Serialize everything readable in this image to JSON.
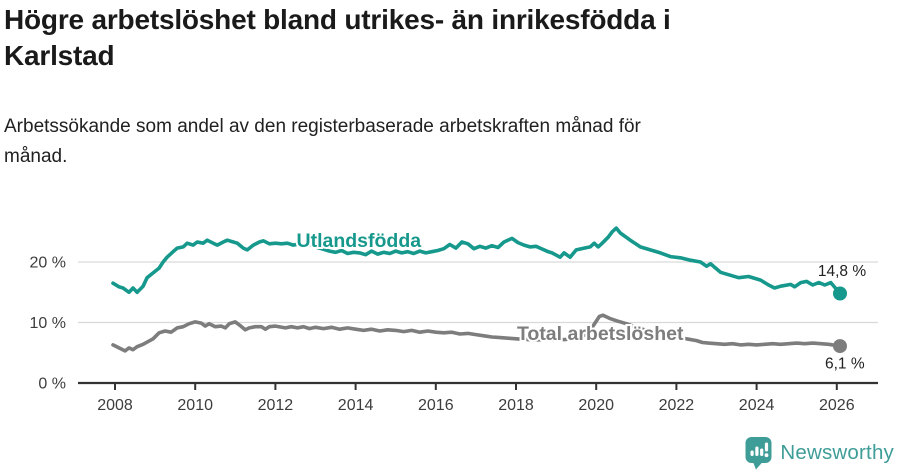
{
  "title_lines": [
    "Högre arbetslöshet bland utrikes- än inrikesfödda i",
    "Karlstad"
  ],
  "subtitle_lines": [
    "Arbetssökande som andel av den registerbaserade arbetskraften månad för",
    "månad."
  ],
  "branding": {
    "wordmark": "Newsworthy",
    "icon": "bar-chart-speech-bubble-icon",
    "color": "#3f9d97"
  },
  "colors": {
    "foreign_born_line": "#16998c",
    "total_line": "#7d7d7d",
    "axis": "#333333",
    "grid": "#d9d9d9",
    "tick_text": "#3d3d3d",
    "annotation_text": "#222222",
    "background": "#ffffff"
  },
  "chart_data": {
    "type": "line",
    "title": "Högre arbetslöshet bland utrikes- än inrikesfödda i Karlstad",
    "subtitle": "Arbetssökande som andel av den registerbaserade arbetskraften månad för månad.",
    "xlabel": "",
    "ylabel": "",
    "xlim": [
      2007.1,
      2026.9
    ],
    "ylim": [
      0,
      27
    ],
    "grid": "horizontal",
    "legend_position": "inline-labels",
    "x_ticks": [
      2008,
      2010,
      2012,
      2014,
      2016,
      2018,
      2020,
      2022,
      2024,
      2026
    ],
    "y_ticks": [
      {
        "value": 0,
        "label": "0 %"
      },
      {
        "value": 10,
        "label": "10 %"
      },
      {
        "value": 20,
        "label": "20 %"
      }
    ],
    "series": [
      {
        "id": "utlandsfodda",
        "name": "Utlandsfödda",
        "color": "#16998c",
        "end_value_label": "14,8 %",
        "points": [
          [
            2007.95,
            16.5
          ],
          [
            2008.1,
            15.9
          ],
          [
            2008.2,
            15.7
          ],
          [
            2008.35,
            15.0
          ],
          [
            2008.45,
            15.7
          ],
          [
            2008.55,
            15.0
          ],
          [
            2008.7,
            16.0
          ],
          [
            2008.8,
            17.4
          ],
          [
            2008.95,
            18.2
          ],
          [
            2009.1,
            19.0
          ],
          [
            2009.2,
            20.0
          ],
          [
            2009.3,
            20.8
          ],
          [
            2009.45,
            21.7
          ],
          [
            2009.55,
            22.3
          ],
          [
            2009.7,
            22.5
          ],
          [
            2009.8,
            23.1
          ],
          [
            2009.95,
            22.8
          ],
          [
            2010.05,
            23.3
          ],
          [
            2010.2,
            23.1
          ],
          [
            2010.3,
            23.6
          ],
          [
            2010.45,
            23.1
          ],
          [
            2010.55,
            22.8
          ],
          [
            2010.7,
            23.3
          ],
          [
            2010.8,
            23.6
          ],
          [
            2010.95,
            23.3
          ],
          [
            2011.05,
            23.1
          ],
          [
            2011.2,
            22.3
          ],
          [
            2011.3,
            22.0
          ],
          [
            2011.45,
            22.8
          ],
          [
            2011.6,
            23.3
          ],
          [
            2011.7,
            23.5
          ],
          [
            2011.85,
            23.0
          ],
          [
            2012.0,
            23.1
          ],
          [
            2012.15,
            23.0
          ],
          [
            2012.3,
            23.1
          ],
          [
            2012.45,
            22.8
          ],
          [
            2012.6,
            23.0
          ],
          [
            2012.75,
            22.7
          ],
          [
            2012.9,
            22.9
          ],
          [
            2013.05,
            22.4
          ],
          [
            2013.2,
            22.1
          ],
          [
            2013.35,
            21.8
          ],
          [
            2013.5,
            21.6
          ],
          [
            2013.65,
            21.9
          ],
          [
            2013.8,
            21.4
          ],
          [
            2013.95,
            21.6
          ],
          [
            2014.1,
            21.5
          ],
          [
            2014.25,
            21.2
          ],
          [
            2014.4,
            21.8
          ],
          [
            2014.55,
            21.3
          ],
          [
            2014.7,
            21.6
          ],
          [
            2014.85,
            21.4
          ],
          [
            2015.0,
            21.8
          ],
          [
            2015.15,
            21.5
          ],
          [
            2015.3,
            21.7
          ],
          [
            2015.45,
            21.4
          ],
          [
            2015.6,
            21.8
          ],
          [
            2015.75,
            21.5
          ],
          [
            2015.9,
            21.7
          ],
          [
            2016.05,
            21.9
          ],
          [
            2016.2,
            22.2
          ],
          [
            2016.35,
            22.9
          ],
          [
            2016.5,
            22.3
          ],
          [
            2016.65,
            23.3
          ],
          [
            2016.8,
            23.0
          ],
          [
            2016.95,
            22.2
          ],
          [
            2017.1,
            22.6
          ],
          [
            2017.25,
            22.3
          ],
          [
            2017.4,
            22.7
          ],
          [
            2017.55,
            22.4
          ],
          [
            2017.7,
            23.3
          ],
          [
            2017.9,
            23.9
          ],
          [
            2018.05,
            23.2
          ],
          [
            2018.2,
            22.8
          ],
          [
            2018.35,
            22.5
          ],
          [
            2018.5,
            22.6
          ],
          [
            2018.6,
            22.3
          ],
          [
            2018.8,
            21.7
          ],
          [
            2018.9,
            21.5
          ],
          [
            2019.1,
            20.8
          ],
          [
            2019.2,
            21.5
          ],
          [
            2019.35,
            20.8
          ],
          [
            2019.5,
            22.0
          ],
          [
            2019.7,
            22.3
          ],
          [
            2019.85,
            22.5
          ],
          [
            2019.95,
            23.1
          ],
          [
            2020.05,
            22.5
          ],
          [
            2020.15,
            23.1
          ],
          [
            2020.3,
            24.1
          ],
          [
            2020.4,
            25.0
          ],
          [
            2020.5,
            25.6
          ],
          [
            2020.6,
            24.8
          ],
          [
            2020.85,
            23.6
          ],
          [
            2021.1,
            22.5
          ],
          [
            2021.35,
            22.0
          ],
          [
            2021.6,
            21.5
          ],
          [
            2021.85,
            20.9
          ],
          [
            2022.1,
            20.7
          ],
          [
            2022.35,
            20.3
          ],
          [
            2022.6,
            20.0
          ],
          [
            2022.75,
            19.3
          ],
          [
            2022.85,
            19.7
          ],
          [
            2023.1,
            18.3
          ],
          [
            2023.3,
            17.9
          ],
          [
            2023.55,
            17.4
          ],
          [
            2023.8,
            17.6
          ],
          [
            2024.1,
            17.0
          ],
          [
            2024.3,
            16.2
          ],
          [
            2024.45,
            15.7
          ],
          [
            2024.6,
            16.0
          ],
          [
            2024.85,
            16.3
          ],
          [
            2024.95,
            15.9
          ],
          [
            2025.1,
            16.6
          ],
          [
            2025.25,
            16.8
          ],
          [
            2025.4,
            16.2
          ],
          [
            2025.55,
            16.6
          ],
          [
            2025.7,
            16.2
          ],
          [
            2025.85,
            16.6
          ],
          [
            2026.08,
            14.8
          ]
        ]
      },
      {
        "id": "total",
        "name": "Total arbetslöshet",
        "color": "#7d7d7d",
        "end_value_label": "6,1 %",
        "points": [
          [
            2007.95,
            6.3
          ],
          [
            2008.1,
            5.8
          ],
          [
            2008.25,
            5.3
          ],
          [
            2008.35,
            5.8
          ],
          [
            2008.45,
            5.5
          ],
          [
            2008.55,
            6.0
          ],
          [
            2008.7,
            6.4
          ],
          [
            2008.95,
            7.3
          ],
          [
            2009.1,
            8.3
          ],
          [
            2009.25,
            8.6
          ],
          [
            2009.4,
            8.4
          ],
          [
            2009.55,
            9.1
          ],
          [
            2009.7,
            9.3
          ],
          [
            2009.85,
            9.8
          ],
          [
            2010.0,
            10.1
          ],
          [
            2010.15,
            9.9
          ],
          [
            2010.25,
            9.4
          ],
          [
            2010.35,
            9.8
          ],
          [
            2010.5,
            9.3
          ],
          [
            2010.65,
            9.4
          ],
          [
            2010.75,
            9.1
          ],
          [
            2010.85,
            9.8
          ],
          [
            2011.0,
            10.1
          ],
          [
            2011.1,
            9.6
          ],
          [
            2011.25,
            8.8
          ],
          [
            2011.35,
            9.1
          ],
          [
            2011.5,
            9.3
          ],
          [
            2011.65,
            9.3
          ],
          [
            2011.75,
            8.9
          ],
          [
            2011.85,
            9.3
          ],
          [
            2012.0,
            9.4
          ],
          [
            2012.25,
            9.1
          ],
          [
            2012.4,
            9.3
          ],
          [
            2012.55,
            9.1
          ],
          [
            2012.7,
            9.3
          ],
          [
            2012.85,
            9.0
          ],
          [
            2013.0,
            9.2
          ],
          [
            2013.2,
            9.0
          ],
          [
            2013.4,
            9.2
          ],
          [
            2013.6,
            8.9
          ],
          [
            2013.8,
            9.1
          ],
          [
            2014.0,
            8.9
          ],
          [
            2014.2,
            8.7
          ],
          [
            2014.4,
            8.9
          ],
          [
            2014.6,
            8.6
          ],
          [
            2014.8,
            8.8
          ],
          [
            2015.0,
            8.7
          ],
          [
            2015.2,
            8.5
          ],
          [
            2015.4,
            8.7
          ],
          [
            2015.6,
            8.4
          ],
          [
            2015.8,
            8.6
          ],
          [
            2016.0,
            8.4
          ],
          [
            2016.2,
            8.3
          ],
          [
            2016.4,
            8.4
          ],
          [
            2016.6,
            8.1
          ],
          [
            2016.8,
            8.2
          ],
          [
            2017.0,
            8.0
          ],
          [
            2017.2,
            7.8
          ],
          [
            2017.4,
            7.6
          ],
          [
            2017.6,
            7.5
          ],
          [
            2017.8,
            7.4
          ],
          [
            2018.0,
            7.3
          ],
          [
            2018.25,
            7.2
          ],
          [
            2018.5,
            7.1
          ],
          [
            2018.75,
            7.2
          ],
          [
            2019.0,
            7.1
          ],
          [
            2019.25,
            7.2
          ],
          [
            2019.5,
            7.4
          ],
          [
            2019.75,
            8.0
          ],
          [
            2019.92,
            9.4
          ],
          [
            2020.08,
            11.0
          ],
          [
            2020.17,
            11.2
          ],
          [
            2020.33,
            10.7
          ],
          [
            2020.5,
            10.3
          ],
          [
            2020.75,
            9.8
          ],
          [
            2021.0,
            9.2
          ],
          [
            2021.25,
            8.7
          ],
          [
            2021.5,
            8.3
          ],
          [
            2021.75,
            7.9
          ],
          [
            2022.0,
            7.6
          ],
          [
            2022.25,
            7.3
          ],
          [
            2022.5,
            7.0
          ],
          [
            2022.65,
            6.7
          ],
          [
            2022.8,
            6.6
          ],
          [
            2023.0,
            6.5
          ],
          [
            2023.2,
            6.4
          ],
          [
            2023.4,
            6.5
          ],
          [
            2023.6,
            6.3
          ],
          [
            2023.8,
            6.4
          ],
          [
            2024.0,
            6.3
          ],
          [
            2024.2,
            6.4
          ],
          [
            2024.4,
            6.5
          ],
          [
            2024.6,
            6.4
          ],
          [
            2024.8,
            6.5
          ],
          [
            2025.0,
            6.6
          ],
          [
            2025.2,
            6.5
          ],
          [
            2025.4,
            6.6
          ],
          [
            2025.6,
            6.5
          ],
          [
            2025.8,
            6.4
          ],
          [
            2026.08,
            6.1
          ]
        ]
      }
    ],
    "annotations": [
      {
        "text": "Utlandsfödda",
        "year": 2014.08,
        "value": 23.5,
        "style": "label-foreign"
      },
      {
        "text": "Total arbetslöshet",
        "year": 2020.1,
        "value": 8.1,
        "style": "label-total"
      },
      {
        "text": "14,8 %",
        "year": 2026.13,
        "value": 18.7,
        "style": "value-dark"
      },
      {
        "text": "6,1 %",
        "year": 2026.2,
        "value": 3.4,
        "style": "value-dark"
      }
    ]
  }
}
